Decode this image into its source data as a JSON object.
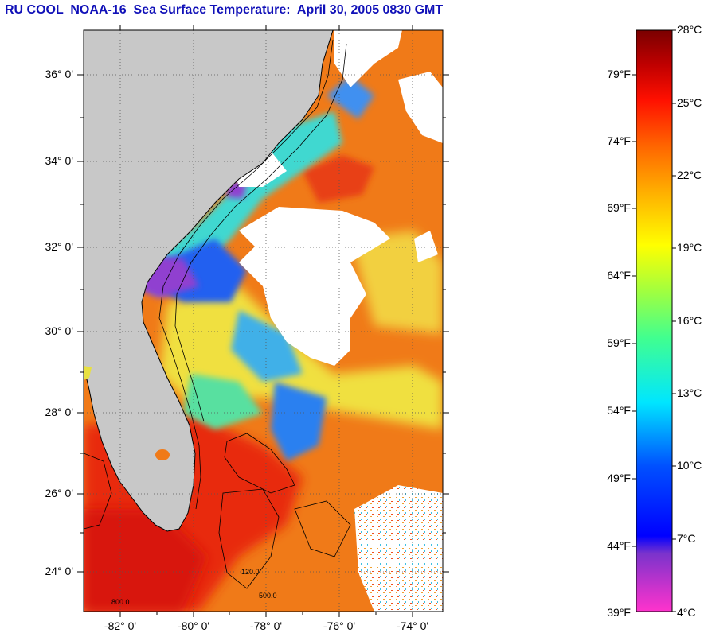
{
  "title": "RU COOL  NOAA-16  Sea Surface Temperature:  April 30, 2005 0830 GMT",
  "map": {
    "lat_labels": [
      "36° 0'",
      "34° 0'",
      "32° 0'",
      "30° 0'",
      "28° 0'",
      "26° 0'",
      "24° 0'"
    ],
    "lon_labels": [
      "-82° 0'",
      "-80° 0'",
      "-78° 0'",
      "-76° 0'",
      "-74° 0'"
    ],
    "bathymetry_labels": [
      "120.0",
      "500.0",
      "800.0"
    ]
  },
  "colorbar": {
    "fahrenheit_labels": [
      "79°F",
      "74°F",
      "69°F",
      "64°F",
      "59°F",
      "54°F",
      "49°F",
      "44°F",
      "39°F"
    ],
    "celsius_labels": [
      "28°C",
      "25°C",
      "22°C",
      "19°C",
      "16°C",
      "13°C",
      "10°C",
      "7°C",
      "4°C"
    ],
    "range_c": [
      4,
      28
    ],
    "colors": [
      "#ff33cc",
      "#9933cc",
      "#0000ff",
      "#00e6ff",
      "#66ff66",
      "#ffff00",
      "#ff9900",
      "#ff0000",
      "#800000"
    ]
  },
  "colors": {
    "title": "#1010b8",
    "land": "#c8c8c8",
    "cloud": "#ffffff",
    "warm": "#e82a10",
    "orange": "#f07a18",
    "yellow": "#f0e040",
    "cyan": "#40d8d0",
    "blue": "#2060f0",
    "purple": "#9040d0"
  }
}
